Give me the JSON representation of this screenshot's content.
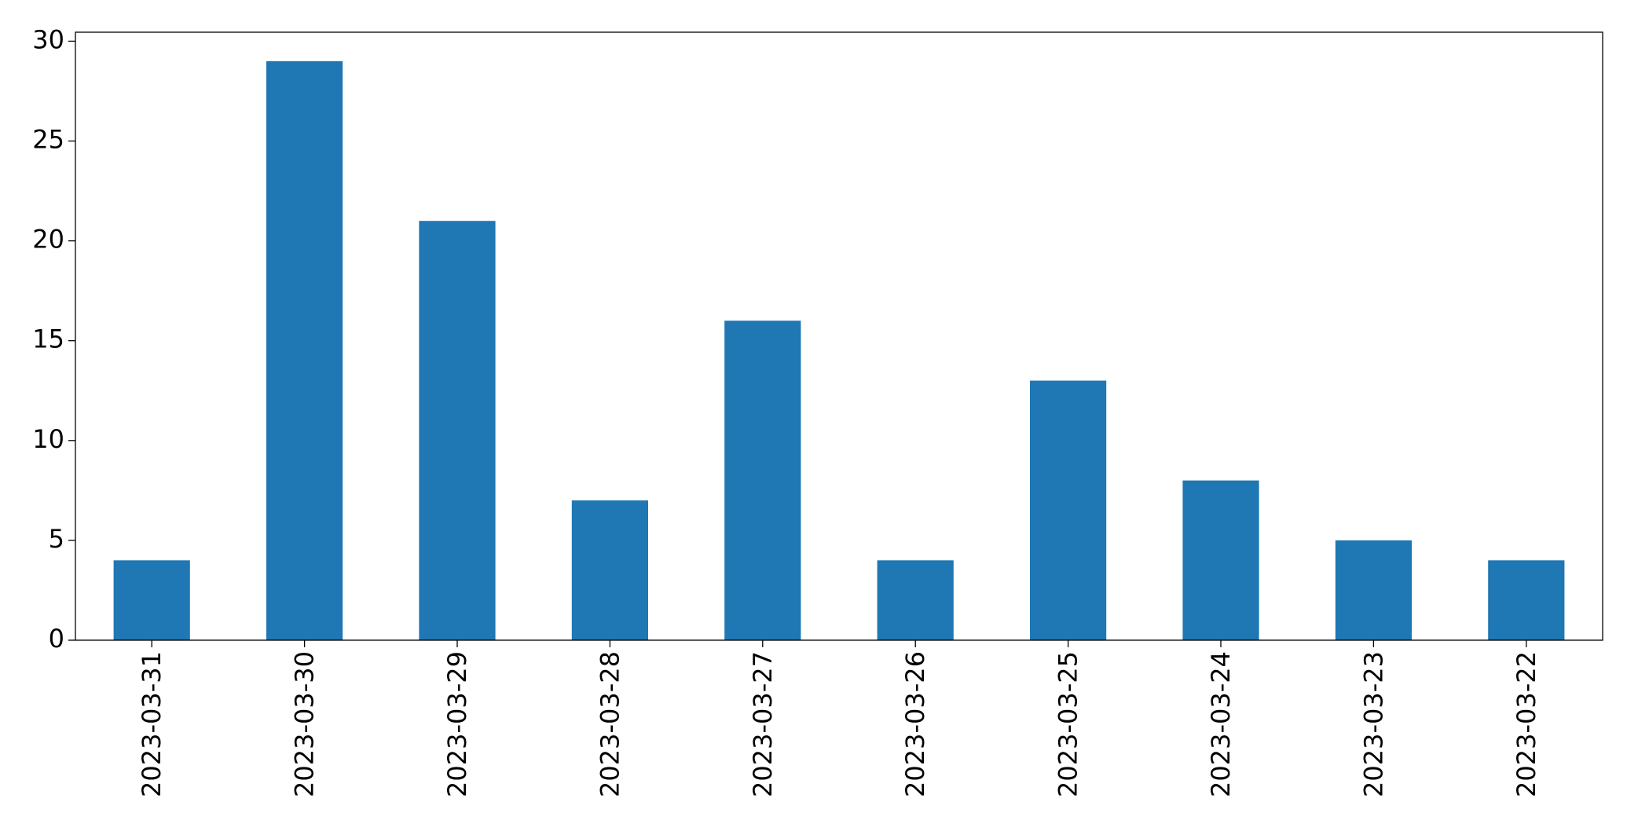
{
  "chart_data": {
    "type": "bar",
    "categories": [
      "2023-03-31",
      "2023-03-30",
      "2023-03-29",
      "2023-03-28",
      "2023-03-27",
      "2023-03-26",
      "2023-03-25",
      "2023-03-24",
      "2023-03-23",
      "2023-03-22"
    ],
    "values": [
      4,
      29,
      21,
      7,
      16,
      4,
      13,
      8,
      5,
      4
    ],
    "color": "#1f77b4",
    "ylim": [
      0,
      30.45
    ],
    "yticks": [
      0,
      5,
      10,
      15,
      20,
      25,
      30
    ],
    "grid": false
  }
}
